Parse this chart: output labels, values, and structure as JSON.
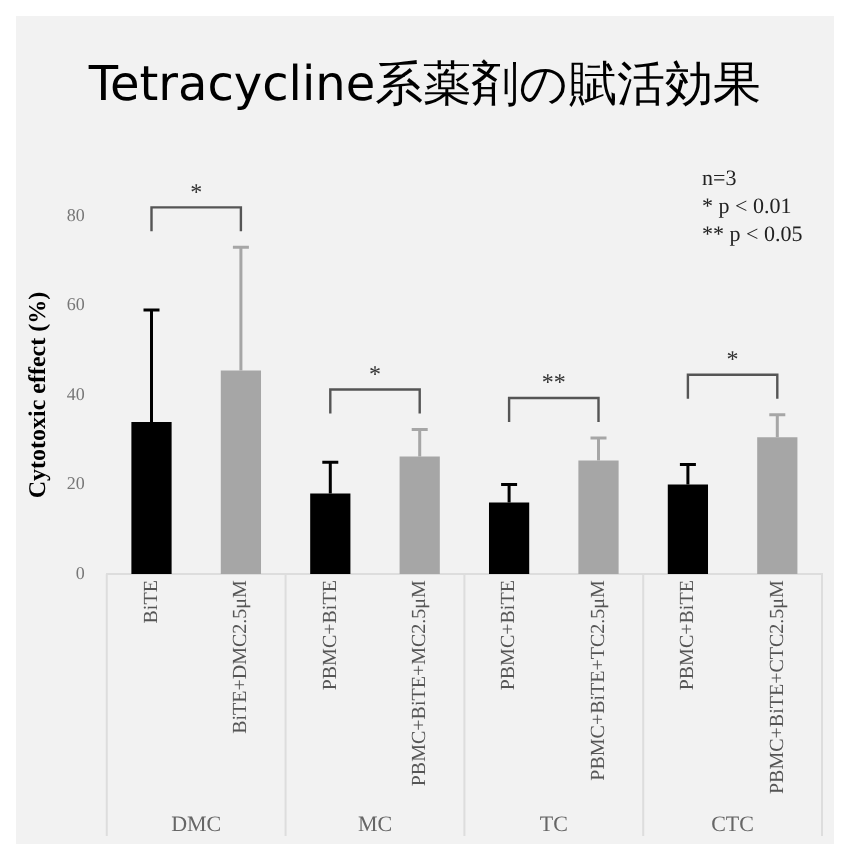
{
  "chart_data": {
    "type": "bar",
    "title": "Tetracycline系薬剤の賦活効果",
    "ylabel": "Cytotoxic effect (%)",
    "categories": [
      "BiTE",
      "BiTE+DMC2.5μM",
      "PBMC+BiTE",
      "PBMC+BiTE+MC2.5μM",
      "PBMC+BiTE",
      "PBMC+BiTE+TC2.5μM",
      "PBMC+BiTE",
      "PBMC+BiTE+CTC2.5μM"
    ],
    "values": [
      34,
      45.5,
      18,
      26.3,
      16,
      25.4,
      20,
      30.6
    ],
    "colors": [
      "#000000",
      "#a6a6a6",
      "#000000",
      "#a6a6a6",
      "#000000",
      "#a6a6a6",
      "#000000",
      "#a6a6a6"
    ],
    "errors": [
      [
        34,
        59
      ],
      [
        45.5,
        73
      ],
      [
        18,
        25
      ],
      [
        26.3,
        32.3
      ],
      [
        16,
        20
      ],
      [
        25.4,
        30.4
      ],
      [
        20,
        24.5
      ],
      [
        30.6,
        35.6
      ]
    ],
    "ylim": [
      0,
      80
    ],
    "yticks": [
      0,
      20,
      40,
      60,
      80
    ],
    "grid": false,
    "legend": false,
    "annotations": [
      "n=3",
      "* p < 0.01",
      "** p < 0.05",
      "DMC",
      "MC",
      "TC",
      "CTC",
      "*",
      "*",
      "**",
      "*"
    ]
  }
}
